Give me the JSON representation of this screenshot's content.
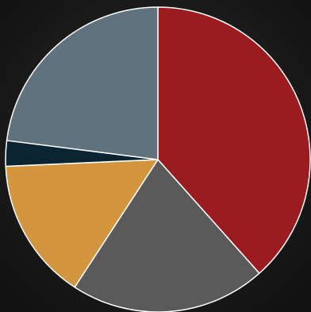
{
  "chart_data": {
    "type": "pie",
    "values": [
      38.4,
      20.8,
      15.1,
      2.7,
      23.0
    ],
    "colors": [
      "#9b1c1f",
      "#5a5a5a",
      "#d3953e",
      "#0b2431",
      "#5f727d"
    ],
    "start_angle": 0,
    "direction": "clockwise"
  }
}
